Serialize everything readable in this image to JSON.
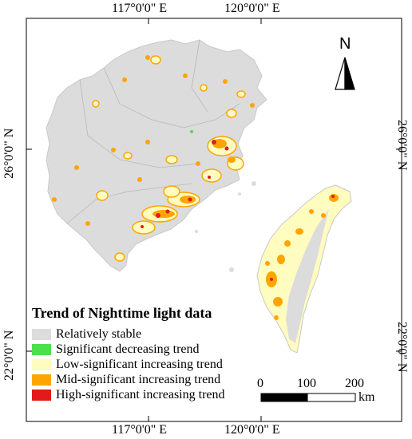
{
  "coordinates": {
    "top": [
      "117°0'0\" E",
      "120°0'0\" E"
    ],
    "bottom": [
      "117°0'0\" E",
      "120°0'0\" E"
    ],
    "left": [
      "26°0'0\" N",
      "22°0'0\" N"
    ],
    "right": [
      "26°0'0\" N",
      "22°0'0\" N"
    ]
  },
  "north_arrow": {
    "label": "N"
  },
  "legend": {
    "title": "Trend of Nighttime light data",
    "items": [
      {
        "label": "Relatively stable",
        "color": "#dcdcdc"
      },
      {
        "label": "Significant decreasing trend",
        "color": "#4ce04c"
      },
      {
        "label": "Low-significant increasing trend",
        "color": "#fffcc0"
      },
      {
        "label": "Mid-significant increasing trend",
        "color": "#ffa500"
      },
      {
        "label": "High-significant increasing trend",
        "color": "#e31a1c"
      }
    ]
  },
  "scale_bar": {
    "ticks": [
      "0",
      "100",
      "200"
    ],
    "unit": "km"
  }
}
